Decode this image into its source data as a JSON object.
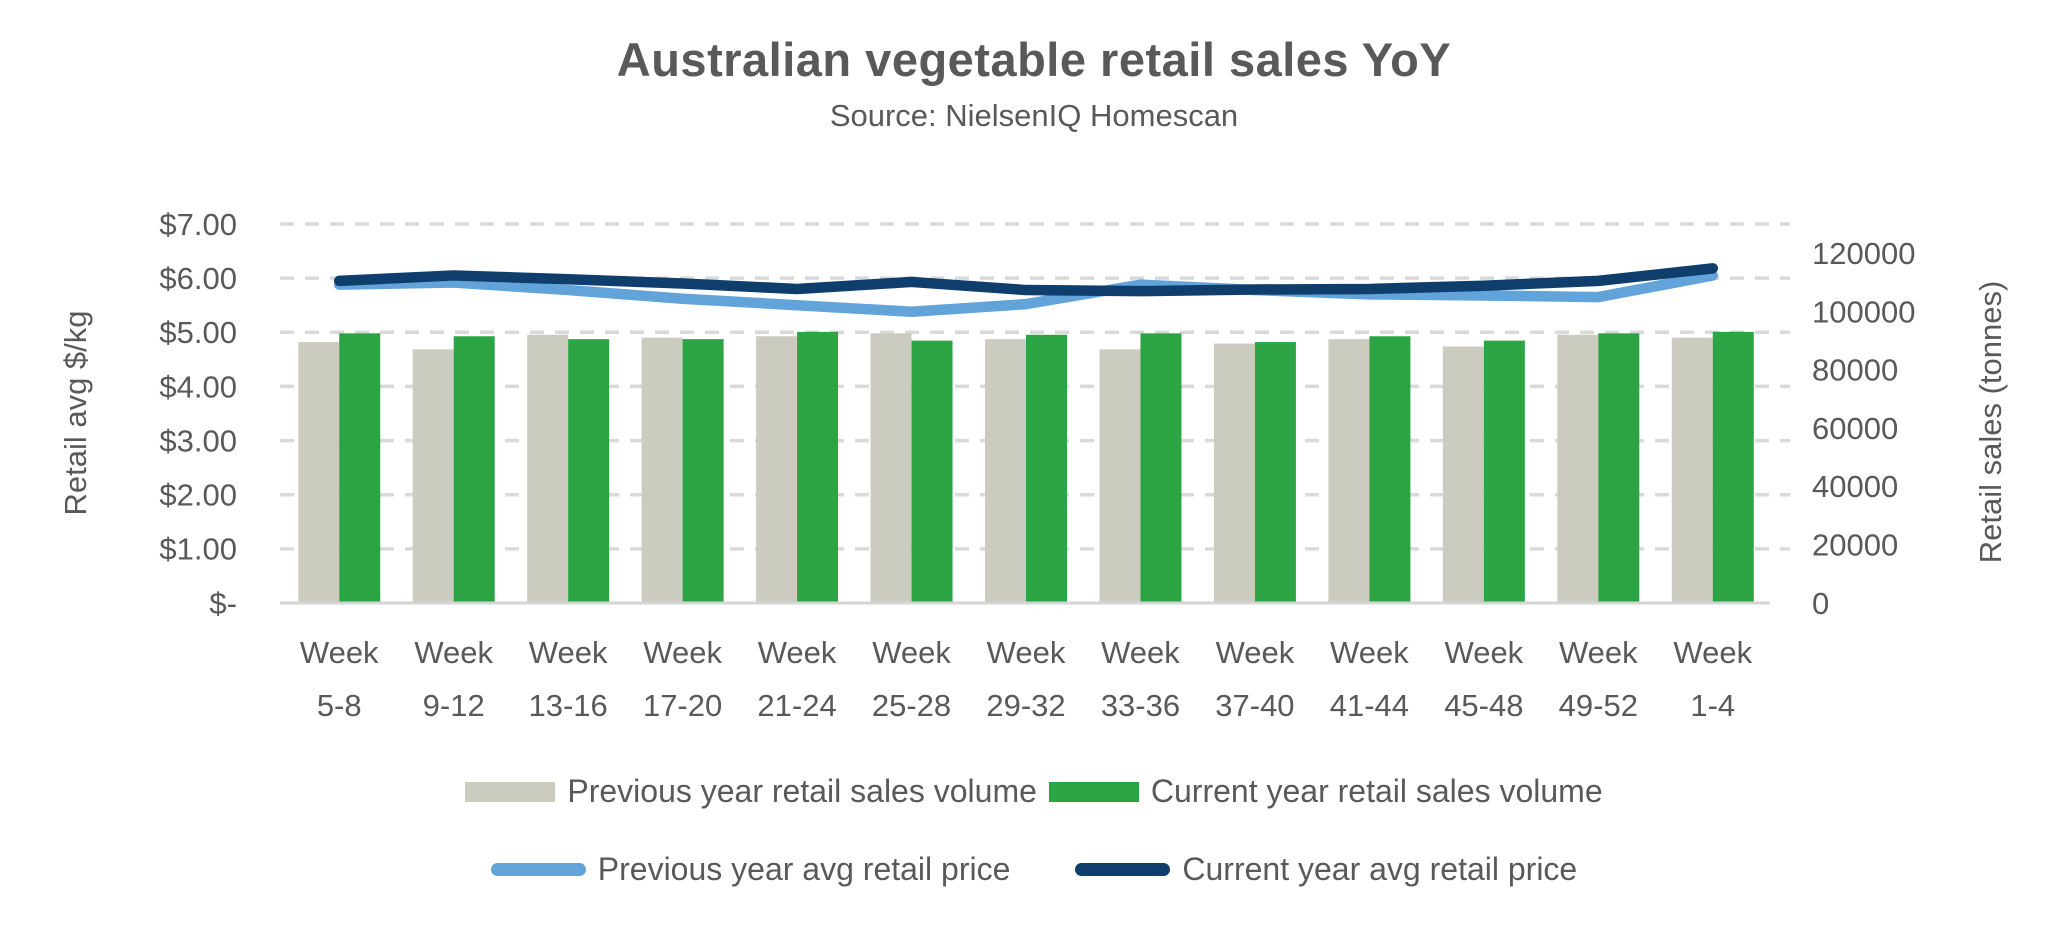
{
  "chart": {
    "title": "Australian vegetable retail sales YoY",
    "subtitle": "Source: NielsenIQ Homescan"
  },
  "chart_data": {
    "type": "combo_bar_line",
    "title": "Australian vegetable retail sales YoY",
    "subtitle": "Source: NielsenIQ Homescan",
    "categories": [
      "Week 5-8",
      "Week 9-12",
      "Week 13-16",
      "Week 17-20",
      "Week 21-24",
      "Week 25-28",
      "Week 29-32",
      "Week 33-36",
      "Week 37-40",
      "Week 41-44",
      "Week 45-48",
      "Week 49-52",
      "Week 1-4"
    ],
    "series": [
      {
        "name": "Previous year retail sales volume",
        "type": "bar",
        "axis": "right",
        "color": "#CBCCBF",
        "values": [
          89500,
          87000,
          92000,
          91000,
          91500,
          92500,
          90500,
          87000,
          89000,
          90500,
          88000,
          92000,
          91000
        ]
      },
      {
        "name": "Current year retail sales volume",
        "type": "bar",
        "axis": "right",
        "color": "#2DA444",
        "values": [
          92500,
          91500,
          90500,
          90500,
          93000,
          90000,
          92000,
          92500,
          89500,
          91500,
          90000,
          92500,
          93000
        ]
      },
      {
        "name": "Previous year avg retail price",
        "type": "line",
        "axis": "left",
        "color": "#62A3D9",
        "values": [
          5.88,
          5.92,
          5.78,
          5.62,
          5.5,
          5.38,
          5.52,
          5.88,
          5.78,
          5.7,
          5.68,
          5.65,
          6.05
        ]
      },
      {
        "name": "Current year avg retail price",
        "type": "line",
        "axis": "left",
        "color": "#0F3D6C",
        "values": [
          5.95,
          6.05,
          5.98,
          5.9,
          5.8,
          5.93,
          5.78,
          5.76,
          5.79,
          5.8,
          5.86,
          5.95,
          6.18
        ]
      }
    ],
    "left_axis": {
      "title": "Retail avg $/kg",
      "min": 0,
      "max": 7,
      "interval": 1,
      "tick_labels": [
        "$7.00",
        "$6.00",
        "$5.00",
        "$4.00",
        "$3.00",
        "$2.00",
        "$1.00",
        "$-"
      ],
      "tick_values": [
        7,
        6,
        5,
        4,
        3,
        2,
        1,
        0
      ]
    },
    "right_axis": {
      "title": "Retail sales (tonnes)",
      "min": 0,
      "max": 130000,
      "interval": 20000,
      "tick_labels": [
        "120000",
        "100000",
        "80000",
        "60000",
        "40000",
        "20000",
        "0"
      ],
      "tick_values": [
        120000,
        100000,
        80000,
        60000,
        40000,
        20000,
        0
      ]
    },
    "grid": {
      "horizontal": true,
      "style": "dashed",
      "color": "#D9D9D9"
    },
    "legend_position": "bottom",
    "colors": {
      "text": "#595959",
      "axis_line": "#D5D5D5",
      "background": "#FFFFFF"
    }
  }
}
